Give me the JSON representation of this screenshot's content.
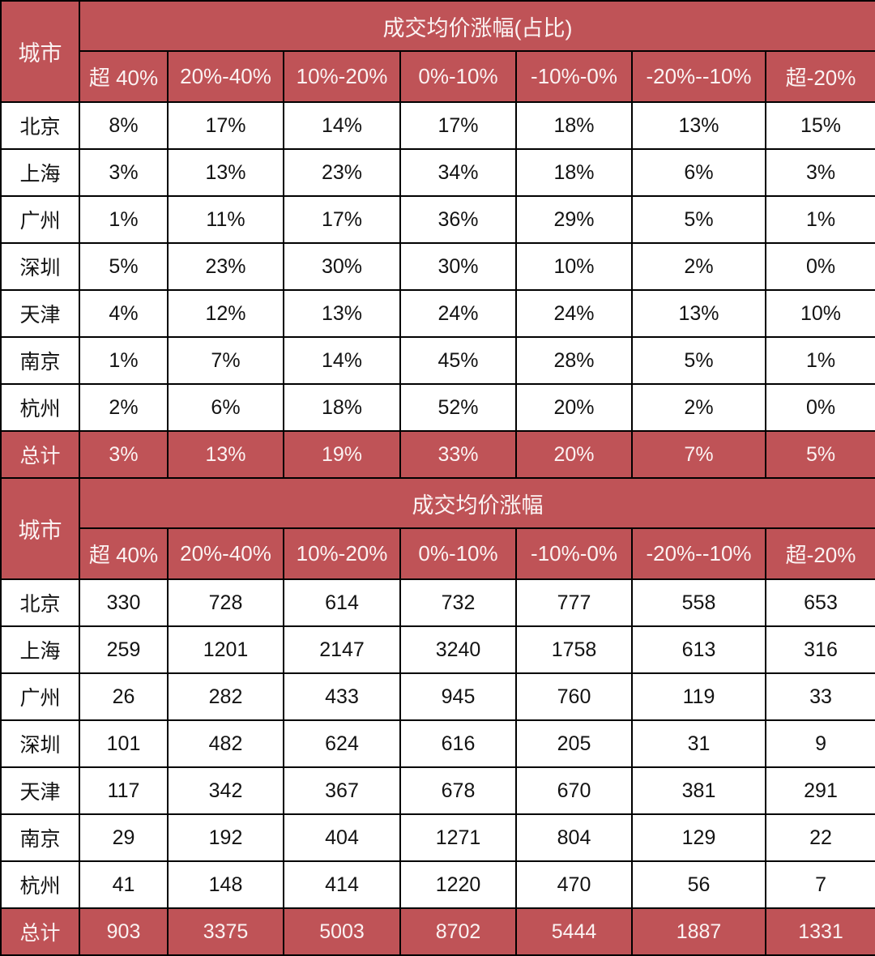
{
  "colors": {
    "header_bg": "#BF5357",
    "header_text": "#FBF2F2",
    "body_text": "#131313",
    "border": "#000000",
    "row_bg": "#FFFFFF"
  },
  "city_header": "城市",
  "columns": [
    "超 40%",
    "20%-40%",
    "10%-20%",
    "0%-10%",
    "-10%-0%",
    "-20%--10%",
    "超-20%"
  ],
  "tables": [
    {
      "title": "成交均价涨幅(占比)",
      "rows": [
        {
          "city": "北京",
          "values": [
            "8%",
            "17%",
            "14%",
            "17%",
            "18%",
            "13%",
            "15%"
          ]
        },
        {
          "city": "上海",
          "values": [
            "3%",
            "13%",
            "23%",
            "34%",
            "18%",
            "6%",
            "3%"
          ]
        },
        {
          "city": "广州",
          "values": [
            "1%",
            "11%",
            "17%",
            "36%",
            "29%",
            "5%",
            "1%"
          ]
        },
        {
          "city": "深圳",
          "values": [
            "5%",
            "23%",
            "30%",
            "30%",
            "10%",
            "2%",
            "0%"
          ]
        },
        {
          "city": "天津",
          "values": [
            "4%",
            "12%",
            "13%",
            "24%",
            "24%",
            "13%",
            "10%"
          ]
        },
        {
          "city": "南京",
          "values": [
            "1%",
            "7%",
            "14%",
            "45%",
            "28%",
            "5%",
            "1%"
          ]
        },
        {
          "city": "杭州",
          "values": [
            "2%",
            "6%",
            "18%",
            "52%",
            "20%",
            "2%",
            "0%"
          ]
        }
      ],
      "total_row": {
        "city": "总计",
        "values": [
          "3%",
          "13%",
          "19%",
          "33%",
          "20%",
          "7%",
          "5%"
        ]
      }
    },
    {
      "title": "成交均价涨幅",
      "rows": [
        {
          "city": "北京",
          "values": [
            "330",
            "728",
            "614",
            "732",
            "777",
            "558",
            "653"
          ]
        },
        {
          "city": "上海",
          "values": [
            "259",
            "1201",
            "2147",
            "3240",
            "1758",
            "613",
            "316"
          ]
        },
        {
          "city": "广州",
          "values": [
            "26",
            "282",
            "433",
            "945",
            "760",
            "119",
            "33"
          ]
        },
        {
          "city": "深圳",
          "values": [
            "101",
            "482",
            "624",
            "616",
            "205",
            "31",
            "9"
          ]
        },
        {
          "city": "天津",
          "values": [
            "117",
            "342",
            "367",
            "678",
            "670",
            "381",
            "291"
          ]
        },
        {
          "city": "南京",
          "values": [
            "29",
            "192",
            "404",
            "1271",
            "804",
            "129",
            "22"
          ]
        },
        {
          "city": "杭州",
          "values": [
            "41",
            "148",
            "414",
            "1220",
            "470",
            "56",
            "7"
          ]
        }
      ],
      "total_row": {
        "city": "总计",
        "values": [
          "903",
          "3375",
          "5003",
          "8702",
          "5444",
          "1887",
          "1331"
        ]
      }
    }
  ],
  "chart_data": [
    {
      "type": "table",
      "title": "成交均价涨幅(占比)",
      "row_header": "城市",
      "columns": [
        "超 40%",
        "20%-40%",
        "10%-20%",
        "0%-10%",
        "-10%-0%",
        "-20%--10%",
        "超-20%"
      ],
      "row_labels": [
        "北京",
        "上海",
        "广州",
        "深圳",
        "天津",
        "南京",
        "杭州",
        "总计"
      ],
      "unit": "%",
      "values": [
        [
          8,
          17,
          14,
          17,
          18,
          13,
          15
        ],
        [
          3,
          13,
          23,
          34,
          18,
          6,
          3
        ],
        [
          1,
          11,
          17,
          36,
          29,
          5,
          1
        ],
        [
          5,
          23,
          30,
          30,
          10,
          2,
          0
        ],
        [
          4,
          12,
          13,
          24,
          24,
          13,
          10
        ],
        [
          1,
          7,
          14,
          45,
          28,
          5,
          1
        ],
        [
          2,
          6,
          18,
          52,
          20,
          2,
          0
        ],
        [
          3,
          13,
          19,
          33,
          20,
          7,
          5
        ]
      ]
    },
    {
      "type": "table",
      "title": "成交均价涨幅",
      "row_header": "城市",
      "columns": [
        "超 40%",
        "20%-40%",
        "10%-20%",
        "0%-10%",
        "-10%-0%",
        "-20%--10%",
        "超-20%"
      ],
      "row_labels": [
        "北京",
        "上海",
        "广州",
        "深圳",
        "天津",
        "南京",
        "杭州",
        "总计"
      ],
      "unit": "count",
      "values": [
        [
          330,
          728,
          614,
          732,
          777,
          558,
          653
        ],
        [
          259,
          1201,
          2147,
          3240,
          1758,
          613,
          316
        ],
        [
          26,
          282,
          433,
          945,
          760,
          119,
          33
        ],
        [
          101,
          482,
          624,
          616,
          205,
          31,
          9
        ],
        [
          117,
          342,
          367,
          678,
          670,
          381,
          291
        ],
        [
          29,
          192,
          404,
          1271,
          804,
          129,
          22
        ],
        [
          41,
          148,
          414,
          1220,
          470,
          56,
          7
        ],
        [
          903,
          3375,
          5003,
          8702,
          5444,
          1887,
          1331
        ]
      ]
    }
  ]
}
